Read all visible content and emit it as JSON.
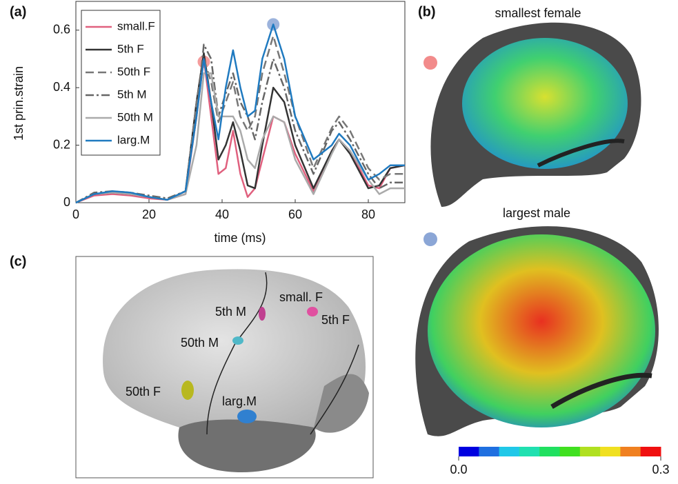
{
  "chart_data": {
    "type": "line",
    "panel": "(a)",
    "xlabel": "time (ms)",
    "ylabel": "1st prin.strain",
    "xlim": [
      0,
      90
    ],
    "xticks": [
      0,
      20,
      40,
      60,
      80
    ],
    "ylim": [
      0,
      0.7
    ],
    "yticks": [
      0,
      0.2,
      0.4,
      0.6
    ],
    "legend": "upper left",
    "x": [
      0,
      5,
      10,
      15,
      20,
      25,
      30,
      33,
      35,
      37,
      39,
      41,
      43,
      45,
      47,
      49,
      51,
      54,
      57,
      60,
      65,
      70,
      72,
      75,
      80,
      83,
      86,
      90
    ],
    "series": [
      {
        "name": "small.F",
        "color": "#e0607e",
        "dash": "solid",
        "values": [
          0,
          0.025,
          0.03,
          0.025,
          0.015,
          0.01,
          0.03,
          0.3,
          0.5,
          0.3,
          0.1,
          0.12,
          0.25,
          0.1,
          0.02,
          0.05,
          0.15,
          0.3,
          0.28,
          0.17,
          0.04,
          0.18,
          0.22,
          0.18,
          0.06,
          0.05,
          0.12,
          0.13
        ]
      },
      {
        "name": "5th F",
        "color": "#333333",
        "dash": "solid",
        "values": [
          0,
          0.03,
          0.035,
          0.03,
          0.02,
          0.01,
          0.04,
          0.35,
          0.52,
          0.35,
          0.15,
          0.2,
          0.28,
          0.18,
          0.06,
          0.05,
          0.2,
          0.4,
          0.35,
          0.2,
          0.05,
          0.18,
          0.22,
          0.17,
          0.05,
          0.06,
          0.12,
          0.13
        ]
      },
      {
        "name": "50th F",
        "color": "#777777",
        "dash": "dashed",
        "values": [
          0,
          0.03,
          0.035,
          0.03,
          0.02,
          0.01,
          0.04,
          0.35,
          0.5,
          0.42,
          0.28,
          0.35,
          0.42,
          0.3,
          0.25,
          0.3,
          0.45,
          0.58,
          0.45,
          0.3,
          0.12,
          0.26,
          0.3,
          0.25,
          0.12,
          0.08,
          0.1,
          0.1
        ]
      },
      {
        "name": "5th M",
        "color": "#666666",
        "dash": "dashdot",
        "values": [
          0,
          0.035,
          0.04,
          0.035,
          0.025,
          0.015,
          0.04,
          0.3,
          0.55,
          0.5,
          0.3,
          0.38,
          0.45,
          0.35,
          0.3,
          0.22,
          0.35,
          0.5,
          0.4,
          0.25,
          0.1,
          0.25,
          0.28,
          0.22,
          0.1,
          0.05,
          0.07,
          0.07
        ]
      },
      {
        "name": "50th M",
        "color": "#aaaaaa",
        "dash": "solid",
        "values": [
          0,
          0.03,
          0.035,
          0.03,
          0.02,
          0.01,
          0.03,
          0.2,
          0.45,
          0.45,
          0.3,
          0.3,
          0.3,
          0.25,
          0.15,
          0.12,
          0.22,
          0.3,
          0.28,
          0.15,
          0.03,
          0.17,
          0.22,
          0.18,
          0.08,
          0.03,
          0.05,
          0.05
        ]
      },
      {
        "name": "larg.M",
        "color": "#1f7ac0",
        "dash": "solid",
        "values": [
          0,
          0.03,
          0.04,
          0.035,
          0.02,
          0.01,
          0.04,
          0.3,
          0.5,
          0.35,
          0.22,
          0.4,
          0.53,
          0.4,
          0.3,
          0.32,
          0.5,
          0.62,
          0.5,
          0.3,
          0.15,
          0.2,
          0.24,
          0.2,
          0.08,
          0.1,
          0.13,
          0.13
        ]
      }
    ],
    "highlights": [
      {
        "x": 35,
        "y": 0.49,
        "color": "#f28b8b"
      },
      {
        "x": 54,
        "y": 0.62,
        "color": "#8ba6d6"
      }
    ]
  },
  "panel_b": {
    "label": "(b)",
    "top_title": "smallest female",
    "bottom_title": "largest male",
    "colorbar": {
      "colors": [
        "#0000e0",
        "#1f6fe0",
        "#20c8e8",
        "#20e0b0",
        "#20e060",
        "#40e020",
        "#b0e020",
        "#f0e020",
        "#f08020",
        "#f01010"
      ],
      "lim": [
        0,
        0.3
      ],
      "ticks": [
        {
          "value": 0,
          "label": "0.0"
        },
        {
          "value": 0.3,
          "label": "0.3"
        }
      ]
    }
  },
  "panel_c": {
    "label": "(c)",
    "sites": [
      "5th M",
      "small. F",
      "5th F",
      "50th M",
      "50th F",
      "larg.M"
    ]
  }
}
